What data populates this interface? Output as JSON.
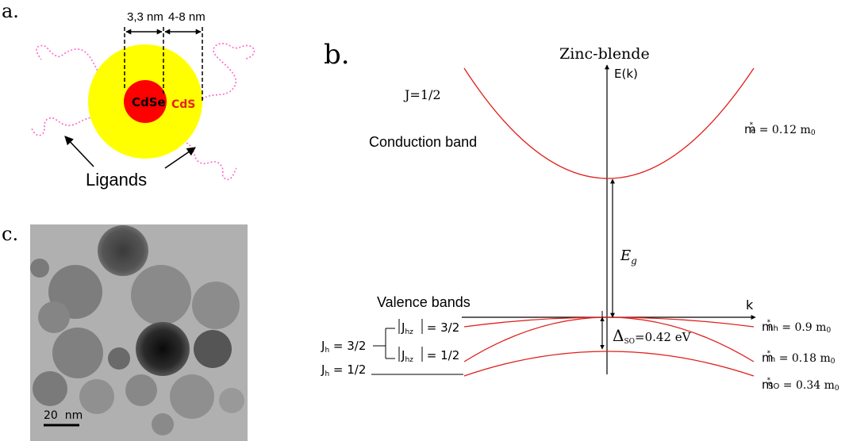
{
  "panel_a": {
    "label": "a.",
    "core_label": "CdSe",
    "shell_label": "CdS",
    "core_size": "3,3 nm",
    "shell_size": "4-8 nm",
    "ligands_label": "Ligands",
    "colors": {
      "shell": "#ffff00",
      "core": "#ff0000",
      "ligand": "#ff66cc",
      "shell_text": "#e8241c"
    }
  },
  "panel_b": {
    "label": "b.",
    "title": "Zinc-blende",
    "y_axis": "E(k)",
    "x_axis": "k",
    "j_top": "J=1/2",
    "conduction": "Conduction band",
    "valence": "Valence bands",
    "gap_symbol": "E",
    "gap_sub": "g",
    "so_symbol": "Δ",
    "so_sub": "SO",
    "so_value": "=0.42 eV",
    "me": {
      "m": "m",
      "sup": "*",
      "sub": "e",
      "val": " = 0.12 m",
      "tail": "0"
    },
    "mhh": {
      "m": "m",
      "sup": "*",
      "sub": "hh",
      "val": " = 0.9 m",
      "tail": "0"
    },
    "mlh": {
      "m": "m",
      "sup": "*",
      "sub": "lh",
      "val": " = 0.18 m",
      "tail": "0"
    },
    "mso": {
      "m": "m",
      "sup": "*",
      "sub": "SO",
      "val": " = 0.34 m",
      "tail": "0"
    },
    "jh32": {
      "j": "J",
      "sub": "h",
      "eq": " = 3/2"
    },
    "jh12": {
      "j": "J",
      "sub": "h",
      "eq": " = 1/2"
    },
    "jhz32": {
      "j": "J",
      "sub": "hz",
      "eq": " = 3/2"
    },
    "jhz12": {
      "j": "J",
      "sub": "hz",
      "eq": " = 1/2"
    },
    "colors": {
      "band": "#e0201c",
      "axis": "#000000"
    }
  },
  "panel_c": {
    "label": "c.",
    "scale_label": "20  nm"
  }
}
